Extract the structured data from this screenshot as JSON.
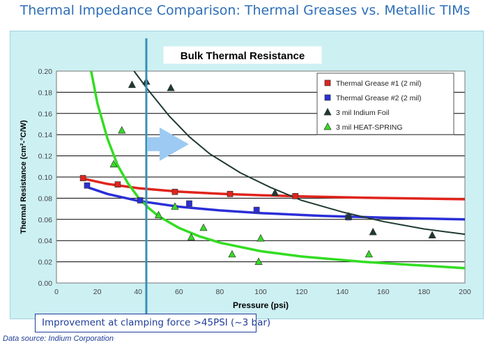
{
  "page_title": "Thermal Impedance Comparison:  Thermal Greases vs. Metallic TIMs",
  "callout_text": "Improvement at clamping force >45PSI (~3 bar)",
  "source_note": "Data source:  Indium Corporation",
  "colors": {
    "title": "#2e6fb7",
    "panel": "#cdf0f3",
    "grease1": "#e0241c",
    "grease2": "#2b2fd6",
    "indium": "#1e3a30",
    "heatspring": "#33dd22",
    "marker_line": "#3a8fb5",
    "arrow": "#9ccaf2",
    "callout": "#1f3d99"
  },
  "chart_data": {
    "type": "scatter",
    "title": "Bulk Thermal Resistance",
    "xlabel": "Pressure (psi)",
    "ylabel": "Thermal Resistance (cm²-°C/W)",
    "xlim": [
      0,
      200
    ],
    "ylim": [
      0,
      0.2
    ],
    "x_ticks": [
      "0",
      "20",
      "40",
      "60",
      "80",
      "100",
      "120",
      "140",
      "160",
      "180",
      "200"
    ],
    "y_ticks": [
      "0.00",
      "0.02",
      "0.04",
      "0.06",
      "0.08",
      "0.10",
      "0.12",
      "0.14",
      "0.16",
      "0.18",
      "0.20"
    ],
    "grid": true,
    "legend_position": "top-right",
    "vertical_marker_x": 44,
    "series": [
      {
        "name": "Thermal Grease #1 (2 mil)",
        "marker": "square",
        "color_key": "grease1",
        "points": [
          [
            13,
            0.099
          ],
          [
            30,
            0.093
          ],
          [
            58,
            0.086
          ],
          [
            85,
            0.084
          ],
          [
            117,
            0.082
          ]
        ],
        "fit": [
          [
            13,
            0.0985
          ],
          [
            25,
            0.0935
          ],
          [
            40,
            0.0895
          ],
          [
            60,
            0.0862
          ],
          [
            80,
            0.0842
          ],
          [
            100,
            0.0828
          ],
          [
            120,
            0.0817
          ],
          [
            150,
            0.0805
          ],
          [
            200,
            0.079
          ]
        ]
      },
      {
        "name": "Thermal Grease #2 (2 mil)",
        "marker": "square",
        "color_key": "grease2",
        "points": [
          [
            15,
            0.092
          ],
          [
            41,
            0.078
          ],
          [
            65,
            0.075
          ],
          [
            98,
            0.069
          ],
          [
            143,
            0.062
          ]
        ],
        "fit": [
          [
            15,
            0.0905
          ],
          [
            25,
            0.084
          ],
          [
            40,
            0.0775
          ],
          [
            60,
            0.072
          ],
          [
            80,
            0.0685
          ],
          [
            100,
            0.066
          ],
          [
            130,
            0.0633
          ],
          [
            160,
            0.0617
          ],
          [
            200,
            0.06
          ]
        ]
      },
      {
        "name": "3 mil Indium Foil",
        "marker": "triangle",
        "color_key": "indium",
        "points": [
          [
            37,
            0.187
          ],
          [
            44,
            0.19
          ],
          [
            56,
            0.184
          ],
          [
            107,
            0.085
          ],
          [
            143,
            0.063
          ],
          [
            155,
            0.048
          ],
          [
            184,
            0.045
          ]
        ],
        "fit": [
          [
            38,
            0.2
          ],
          [
            45,
            0.182
          ],
          [
            55,
            0.158
          ],
          [
            65,
            0.138
          ],
          [
            75,
            0.122
          ],
          [
            90,
            0.104
          ],
          [
            105,
            0.09
          ],
          [
            120,
            0.078
          ],
          [
            140,
            0.067
          ],
          [
            160,
            0.058
          ],
          [
            180,
            0.051
          ],
          [
            200,
            0.046
          ]
        ]
      },
      {
        "name": "3 mil HEAT-SPRING",
        "marker": "triangle",
        "color_key": "heatspring",
        "points": [
          [
            28,
            0.112
          ],
          [
            32,
            0.144
          ],
          [
            50,
            0.064
          ],
          [
            58,
            0.072
          ],
          [
            66,
            0.043
          ],
          [
            72,
            0.052
          ],
          [
            86,
            0.027
          ],
          [
            99,
            0.02
          ],
          [
            100,
            0.042
          ],
          [
            153,
            0.027
          ]
        ],
        "fit": [
          [
            17,
            0.2
          ],
          [
            20,
            0.17
          ],
          [
            25,
            0.136
          ],
          [
            30,
            0.111
          ],
          [
            35,
            0.094
          ],
          [
            40,
            0.081
          ],
          [
            45,
            0.071
          ],
          [
            50,
            0.063
          ],
          [
            60,
            0.052
          ],
          [
            70,
            0.044
          ],
          [
            80,
            0.038
          ],
          [
            100,
            0.03
          ],
          [
            120,
            0.025
          ],
          [
            150,
            0.02
          ],
          [
            175,
            0.017
          ],
          [
            200,
            0.014
          ]
        ]
      }
    ]
  }
}
